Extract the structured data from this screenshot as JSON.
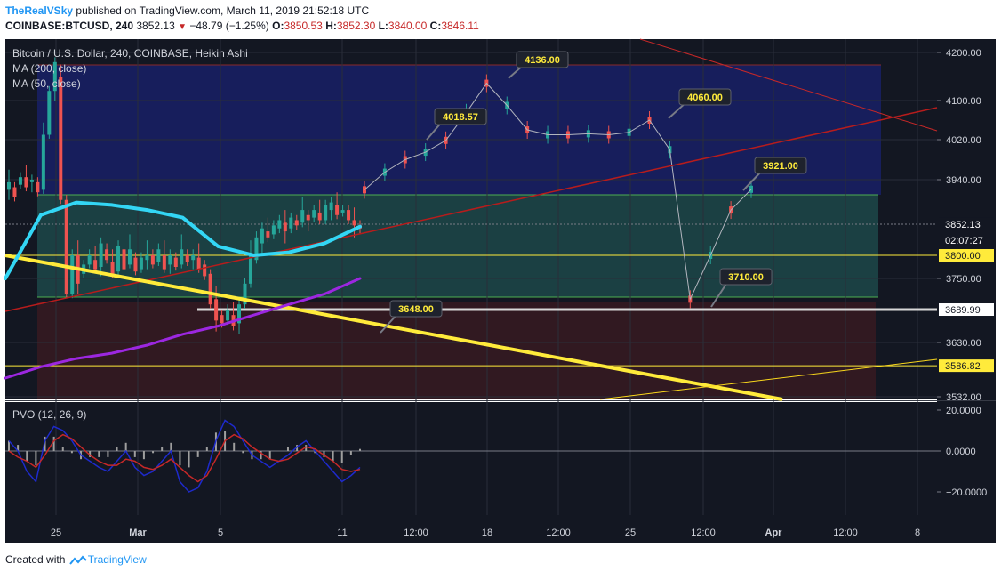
{
  "header": {
    "author": "TheRealVSky",
    "published": "published on TradingView.com, March 11, 2019 21:52:18 UTC",
    "symbol": "COINBASE:BTCUSD, 240",
    "last": "3852.13",
    "change": "−48.79 (−1.25%)",
    "o_label": "O:",
    "o": "3850.53",
    "h_label": "H:",
    "h": "3852.30",
    "l_label": "L:",
    "l": "3840.00",
    "c_label": "C:",
    "c": "3846.11"
  },
  "legend": {
    "title": "Bitcoin / U.S. Dollar, 240, COINBASE, Heikin Ashi",
    "ma200": "MA (200, close)",
    "ma50": "MA (50, close)",
    "pvo": "PVO (12, 26, 9)"
  },
  "footer": {
    "created_with": "Created with",
    "brand": "TradingView"
  },
  "colors": {
    "up": "#26a69a",
    "down": "#ef5350",
    "ma200": "#9c27e0",
    "ma50": "#33d6f5",
    "trend_yellow": "#ffeb3b",
    "trend_red": "#b71c1c",
    "pvo_blue": "#1e2acc",
    "pvo_red": "#c62828"
  },
  "chart_data": [
    {
      "type": "candlestick",
      "title": "Bitcoin / U.S. Dollar, 240, COINBASE, Heikin Ashi",
      "ylim": [
        3520,
        4230
      ],
      "y_ticks": [
        "4200.00",
        "4100.00",
        "4020.00",
        "3940.00",
        "3750.00",
        "3630.00",
        "3532.00"
      ],
      "x_ticks": [
        "25",
        "Mar",
        "5",
        "11",
        "12:00",
        "18",
        "12:00",
        "25",
        "12:00",
        "Apr",
        "12:00",
        "8"
      ],
      "price_labels": [
        {
          "text": "3852.13",
          "value": 3852.13,
          "style": "current"
        },
        {
          "text": "02:07:27",
          "style": "countdown"
        },
        {
          "text": "3800.00",
          "value": 3800,
          "style": "yellow"
        },
        {
          "text": "3689.99",
          "value": 3689.99,
          "style": "white"
        },
        {
          "text": "3586.82",
          "value": 3586.82,
          "style": "yellow"
        }
      ],
      "annotations": [
        {
          "text": "4136.00",
          "value": 4136
        },
        {
          "text": "4018.57",
          "value": 4018.57
        },
        {
          "text": "4060.00",
          "value": 4060
        },
        {
          "text": "3921.00",
          "value": 3921
        },
        {
          "text": "3710.00",
          "value": 3710
        },
        {
          "text": "3648.00",
          "value": 3648
        }
      ],
      "projection_path": [
        3920,
        3955,
        3980,
        3995,
        4018.57,
        4075,
        4136,
        4090,
        4040,
        4030,
        4030,
        4032,
        4030,
        4035,
        4060,
        4000,
        3710,
        3800,
        3880,
        3921
      ],
      "series": [
        {
          "name": "MA (200, close)",
          "values": [
            3565,
            3585,
            3600,
            3610,
            3625,
            3645,
            3660,
            3680,
            3700,
            3720,
            3750
          ]
        },
        {
          "name": "MA (50, close)",
          "values": [
            3750,
            3870,
            3895,
            3890,
            3880,
            3865,
            3815,
            3800,
            3805,
            3820,
            3848
          ]
        }
      ],
      "candles": [
        [
          3920,
          3935
        ],
        [
          3925,
          3905
        ],
        [
          3930,
          3945
        ],
        [
          3945,
          3925
        ],
        [
          3935,
          3940
        ],
        [
          3935,
          3915
        ],
        [
          3920,
          4030
        ],
        [
          4030,
          4120
        ],
        [
          4120,
          4180
        ],
        [
          4150,
          3900
        ],
        [
          3900,
          3720
        ],
        [
          3720,
          3800
        ],
        [
          3800,
          3740
        ],
        [
          3760,
          3780
        ],
        [
          3780,
          3800
        ],
        [
          3790,
          3770
        ],
        [
          3775,
          3820
        ],
        [
          3810,
          3790
        ],
        [
          3785,
          3760
        ],
        [
          3765,
          3815
        ],
        [
          3810,
          3770
        ],
        [
          3780,
          3810
        ],
        [
          3795,
          3765
        ],
        [
          3770,
          3795
        ],
        [
          3790,
          3800
        ],
        [
          3800,
          3780
        ],
        [
          3785,
          3810
        ],
        [
          3800,
          3770
        ],
        [
          3780,
          3800
        ],
        [
          3795,
          3775
        ],
        [
          3780,
          3810
        ],
        [
          3800,
          3785
        ],
        [
          3790,
          3800
        ],
        [
          3795,
          3770
        ],
        [
          3780,
          3755
        ],
        [
          3760,
          3700
        ],
        [
          3710,
          3670
        ],
        [
          3680,
          3665
        ],
        [
          3670,
          3690
        ],
        [
          3680,
          3660
        ],
        [
          3665,
          3700
        ],
        [
          3700,
          3740
        ],
        [
          3740,
          3800
        ],
        [
          3790,
          3830
        ],
        [
          3820,
          3845
        ],
        [
          3840,
          3830
        ],
        [
          3835,
          3850
        ],
        [
          3845,
          3860
        ],
        [
          3855,
          3840
        ],
        [
          3845,
          3865
        ],
        [
          3860,
          3850
        ],
        [
          3855,
          3880
        ],
        [
          3870,
          3860
        ],
        [
          3865,
          3880
        ],
        [
          3875,
          3860
        ],
        [
          3860,
          3890
        ],
        [
          3880,
          3895
        ],
        [
          3890,
          3870
        ],
        [
          3875,
          3880
        ],
        [
          3880,
          3860
        ],
        [
          3860,
          3850
        ],
        [
          3850,
          3845
        ]
      ]
    },
    {
      "type": "bar",
      "title": "PVO (12, 26, 9)",
      "ylim": [
        -30,
        25
      ],
      "y_ticks": [
        "20.0000",
        "0.0000",
        "−20.0000"
      ],
      "series": [
        {
          "name": "PVO",
          "values": [
            5,
            0,
            -10,
            -15,
            5,
            12,
            10,
            5,
            -2,
            -5,
            -8,
            -10,
            -5,
            0,
            -8,
            -12,
            -10,
            -5,
            0,
            -15,
            -20,
            -18,
            -10,
            5,
            15,
            12,
            5,
            -2,
            -5,
            -8,
            -5,
            -2,
            2,
            5,
            0,
            -5,
            -10,
            -15,
            -12,
            -8
          ]
        },
        {
          "name": "Signal",
          "values": [
            0,
            -3,
            -5,
            -8,
            -2,
            5,
            8,
            6,
            2,
            -2,
            -5,
            -7,
            -7,
            -4,
            -5,
            -8,
            -9,
            -7,
            -4,
            -8,
            -12,
            -15,
            -12,
            -4,
            5,
            8,
            6,
            2,
            -1,
            -4,
            -5,
            -4,
            -1,
            2,
            1,
            -2,
            -5,
            -9,
            -10,
            -9
          ]
        },
        {
          "name": "Histogram",
          "values": [
            5,
            3,
            -5,
            -7,
            7,
            7,
            2,
            -1,
            -4,
            -3,
            -3,
            -3,
            2,
            4,
            -3,
            -4,
            -1,
            2,
            4,
            -7,
            -8,
            -3,
            2,
            9,
            10,
            4,
            -1,
            -4,
            -4,
            -4,
            0,
            2,
            3,
            3,
            -1,
            -3,
            -5,
            -6,
            -2,
            1
          ]
        }
      ]
    }
  ]
}
